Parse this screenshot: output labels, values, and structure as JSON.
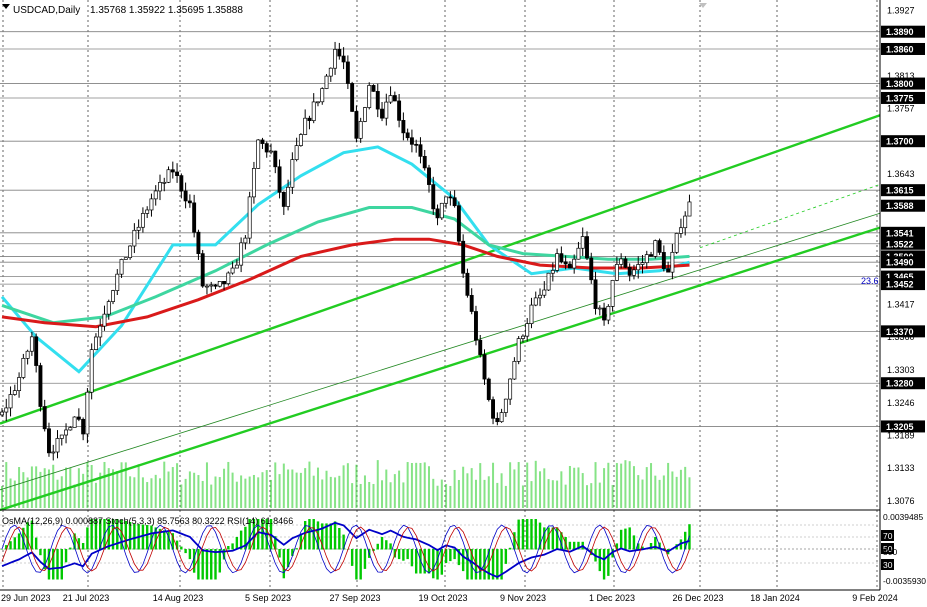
{
  "header": {
    "symbol": "USDCAD,Daily",
    "ohlc": "1.35768 1.35922 1.35695 1.35888"
  },
  "oscillators": {
    "header": "OsMA(12,26,9) 0.000887   Stoch(5,3,3) 85.7563 80.3222   RSI(14) 61.8466",
    "axis_labels": [
      "0.0039485",
      "70",
      "50",
      "500",
      "30",
      "-0.0035930"
    ],
    "colors": {
      "osma": "#00c800",
      "stoch_main": "#0000c8",
      "stoch_signal": "#c00000",
      "rsi": "#0000c8"
    }
  },
  "chart_data": {
    "type": "candlestick",
    "title": "USDCAD,Daily",
    "ylim": [
      1.306,
      1.3945
    ],
    "y_ticks": [
      "1.3927",
      "1.3813",
      "1.3757",
      "1.3643",
      "1.3417",
      "1.3360",
      "1.3303",
      "1.3246",
      "1.3189",
      "1.3133",
      "1.3076"
    ],
    "level_labels": [
      "1.3890",
      "1.3860",
      "1.3800",
      "1.3775",
      "1.3700",
      "1.3615",
      "1.3588",
      "1.3541",
      "1.3522",
      "1.3500",
      "1.3490",
      "1.3465",
      "1.3452",
      "1.3370",
      "1.3280",
      "1.3205"
    ],
    "levels": [
      1.389,
      1.386,
      1.38,
      1.3775,
      1.37,
      1.3615,
      1.3541,
      1.3522,
      1.35,
      1.349,
      1.3465,
      1.3452,
      1.337,
      1.328,
      1.3205
    ],
    "current_price": 1.3588,
    "x_labels": [
      "29 Jun 2023",
      "21 Jul 2023",
      "14 Aug 2023",
      "5 Sep 2023",
      "27 Sep 2023",
      "19 Oct 2023",
      "9 Nov 2023",
      "1 Dec 2023",
      "26 Dec 2023",
      "18 Jan 2024",
      "9 Feb 2024"
    ],
    "fib_label": "23.6",
    "colors": {
      "up": "#ffffff",
      "down": "#000000",
      "ma_cyan": "#33dfef",
      "ma_teal": "#3ed6a0",
      "ma_red": "#d91a1a",
      "channel": "#22cc22",
      "level": "#808080",
      "volume": "#22cc22"
    },
    "waypoints": [
      [
        0,
        1.3225
      ],
      [
        4,
        1.329
      ],
      [
        7,
        1.336
      ],
      [
        9,
        1.325
      ],
      [
        11,
        1.3165
      ],
      [
        14,
        1.318
      ],
      [
        17,
        1.323
      ],
      [
        19,
        1.32
      ],
      [
        21,
        1.334
      ],
      [
        25,
        1.343
      ],
      [
        30,
        1.352
      ],
      [
        35,
        1.36
      ],
      [
        40,
        1.365
      ],
      [
        44,
        1.359
      ],
      [
        47,
        1.345
      ],
      [
        50,
        1.344
      ],
      [
        54,
        1.347
      ],
      [
        57,
        1.354
      ],
      [
        60,
        1.37
      ],
      [
        63,
        1.368
      ],
      [
        66,
        1.358
      ],
      [
        68,
        1.366
      ],
      [
        71,
        1.373
      ],
      [
        75,
        1.379
      ],
      [
        78,
        1.386
      ],
      [
        80,
        1.3835
      ],
      [
        83,
        1.37
      ],
      [
        86,
        1.38
      ],
      [
        89,
        1.375
      ],
      [
        91,
        1.379
      ],
      [
        94,
        1.372
      ],
      [
        97,
        1.369
      ],
      [
        100,
        1.362
      ],
      [
        102,
        1.356
      ],
      [
        104,
        1.361
      ],
      [
        106,
        1.358
      ],
      [
        108,
        1.347
      ],
      [
        110,
        1.34
      ],
      [
        112,
        1.332
      ],
      [
        114,
        1.325
      ],
      [
        116,
        1.3205
      ],
      [
        118,
        1.326
      ],
      [
        121,
        1.335
      ],
      [
        124,
        1.341
      ],
      [
        127,
        1.344
      ],
      [
        130,
        1.35
      ],
      [
        133,
        1.347
      ],
      [
        136,
        1.353
      ],
      [
        139,
        1.342
      ],
      [
        141,
        1.338
      ],
      [
        143,
        1.346
      ],
      [
        145,
        1.35
      ],
      [
        147,
        1.347
      ],
      [
        150,
        1.349
      ],
      [
        153,
        1.352
      ],
      [
        156,
        1.347
      ],
      [
        159,
        1.356
      ],
      [
        161,
        1.359
      ]
    ],
    "ma_cyan": [
      [
        0,
        1.343
      ],
      [
        8,
        1.336
      ],
      [
        18,
        1.33
      ],
      [
        28,
        1.338
      ],
      [
        40,
        1.352
      ],
      [
        50,
        1.352
      ],
      [
        60,
        1.359
      ],
      [
        70,
        1.364
      ],
      [
        80,
        1.368
      ],
      [
        88,
        1.369
      ],
      [
        96,
        1.366
      ],
      [
        106,
        1.36
      ],
      [
        114,
        1.352
      ],
      [
        124,
        1.347
      ],
      [
        134,
        1.348
      ],
      [
        144,
        1.347
      ],
      [
        154,
        1.3475
      ],
      [
        161,
        1.349
      ]
    ],
    "ma_teal": [
      [
        0,
        1.3415
      ],
      [
        12,
        1.3385
      ],
      [
        24,
        1.3395
      ],
      [
        36,
        1.343
      ],
      [
        50,
        1.3475
      ],
      [
        62,
        1.352
      ],
      [
        74,
        1.356
      ],
      [
        86,
        1.3585
      ],
      [
        96,
        1.3585
      ],
      [
        106,
        1.3565
      ],
      [
        114,
        1.352
      ],
      [
        122,
        1.3505
      ],
      [
        132,
        1.35
      ],
      [
        142,
        1.3495
      ],
      [
        152,
        1.3495
      ],
      [
        161,
        1.35
      ]
    ],
    "ma_red": [
      [
        0,
        1.3395
      ],
      [
        10,
        1.3385
      ],
      [
        22,
        1.3378
      ],
      [
        34,
        1.3395
      ],
      [
        46,
        1.3425
      ],
      [
        58,
        1.346
      ],
      [
        70,
        1.35
      ],
      [
        82,
        1.352
      ],
      [
        92,
        1.353
      ],
      [
        100,
        1.353
      ],
      [
        108,
        1.352
      ],
      [
        116,
        1.35
      ],
      [
        126,
        1.3485
      ],
      [
        138,
        1.348
      ],
      [
        150,
        1.348
      ],
      [
        161,
        1.3485
      ]
    ]
  }
}
